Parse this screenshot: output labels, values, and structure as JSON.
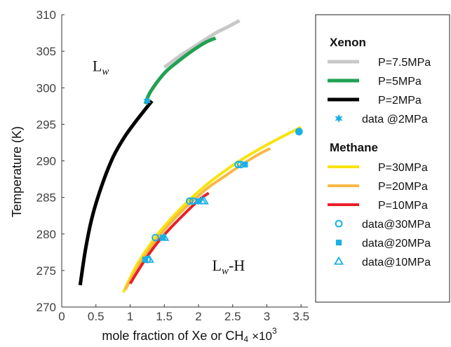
{
  "chart_data": {
    "type": "line",
    "xlabel": "mole fraction of Xe or CH",
    "xlabel_sub": "4",
    "xlabel_multiplier": "×10",
    "xlabel_multiplier_exp": "3",
    "ylabel": "Temperature (K)",
    "xlim": [
      0,
      3.6
    ],
    "ylim": [
      270,
      310
    ],
    "xticks": [
      0,
      0.5,
      1,
      1.5,
      2,
      2.5,
      3,
      3.5
    ],
    "xtick_labels": [
      "0",
      "0.5",
      "1",
      "1.5",
      "2",
      "2.5",
      "3",
      "3.5"
    ],
    "yticks": [
      270,
      275,
      280,
      285,
      290,
      295,
      300,
      305,
      310
    ],
    "ytick_labels": [
      "270",
      "275",
      "280",
      "285",
      "290",
      "295",
      "300",
      "305",
      "310"
    ],
    "grid": false,
    "annotations": [
      {
        "base": "L",
        "sub": "w",
        "suffix": "",
        "x": 0.45,
        "y": 302.3
      },
      {
        "base": "L",
        "sub": "w",
        "suffix": "-H",
        "x": 2.2,
        "y": 275.0
      }
    ],
    "legend_position": "right",
    "legend_groups": [
      {
        "title": "Xenon"
      },
      {
        "title": "Methane"
      }
    ],
    "series": [
      {
        "name": "P=7.5MPa",
        "group": 0,
        "kind": "line",
        "color": "#c8c8c8",
        "width": 5,
        "x": [
          1.5,
          1.75,
          2.0,
          2.25,
          2.4,
          2.6
        ],
        "y": [
          302.8,
          304.5,
          306.0,
          307.5,
          308.2,
          309.2
        ]
      },
      {
        "name": "P=5MPa",
        "group": 0,
        "kind": "line",
        "color": "#21a152",
        "width": 5,
        "x": [
          1.22,
          1.3,
          1.5,
          1.7,
          1.9,
          2.1,
          2.25
        ],
        "y": [
          297.8,
          299.5,
          302.0,
          303.6,
          305.0,
          306.2,
          306.8
        ]
      },
      {
        "name": "P=2MPa",
        "group": 0,
        "kind": "line",
        "color": "#000000",
        "width": 5,
        "x": [
          0.27,
          0.35,
          0.45,
          0.6,
          0.75,
          0.9,
          1.05,
          1.2,
          1.32
        ],
        "y": [
          273.0,
          278.0,
          282.5,
          287.0,
          290.5,
          293.0,
          295.0,
          296.8,
          298.2
        ]
      },
      {
        "name": "data @2MPa",
        "group": 0,
        "kind": "marker",
        "marker": "star",
        "color": "#1ab0e6",
        "x": [
          1.25
        ],
        "y": [
          298.2
        ]
      },
      {
        "name": "P=30MPa",
        "group": 1,
        "kind": "line",
        "color": "#f7e30c",
        "width": 4,
        "x": [
          0.9,
          1.1,
          1.35,
          1.6,
          1.85,
          2.1,
          2.35,
          2.6,
          2.85,
          3.1,
          3.35,
          3.5
        ],
        "y": [
          272.0,
          275.8,
          279.3,
          282.1,
          284.5,
          286.6,
          288.4,
          290.0,
          291.4,
          292.7,
          293.9,
          294.6
        ]
      },
      {
        "name": "P=20MPa",
        "group": 1,
        "kind": "line",
        "color": "#f7b845",
        "width": 4,
        "x": [
          0.93,
          1.15,
          1.4,
          1.65,
          1.9,
          2.15,
          2.4,
          2.65,
          2.9,
          3.05
        ],
        "y": [
          272.4,
          276.0,
          279.4,
          282.1,
          284.4,
          286.4,
          288.0,
          289.6,
          291.0,
          291.7
        ]
      },
      {
        "name": "P=10MPa",
        "group": 1,
        "kind": "line",
        "color": "#e8202a",
        "width": 4,
        "x": [
          1.0,
          1.2,
          1.4,
          1.6,
          1.8,
          2.0,
          2.15
        ],
        "y": [
          273.2,
          276.2,
          278.8,
          280.9,
          282.8,
          284.6,
          285.6
        ]
      },
      {
        "name": "data@30MPa",
        "group": 1,
        "kind": "marker",
        "marker": "circle",
        "color": "#1ab0e6",
        "x": [
          1.25,
          1.37,
          1.87,
          1.92,
          2.58,
          2.62,
          3.47
        ],
        "y": [
          276.5,
          279.5,
          284.5,
          284.5,
          289.5,
          289.5,
          294.0
        ]
      },
      {
        "name": "data@20MPa",
        "group": 1,
        "kind": "marker",
        "marker": "square",
        "color": "#1ab0e6",
        "x": [
          1.22,
          1.48,
          2.0,
          2.68,
          3.47
        ],
        "y": [
          276.5,
          279.5,
          284.5,
          289.5,
          294.0
        ]
      },
      {
        "name": "data@10MPa",
        "group": 1,
        "kind": "marker",
        "marker": "triangle",
        "color": "#1ab0e6",
        "x": [
          1.28,
          1.5,
          2.05,
          2.08
        ],
        "y": [
          276.5,
          279.5,
          284.5,
          284.5
        ]
      }
    ]
  }
}
